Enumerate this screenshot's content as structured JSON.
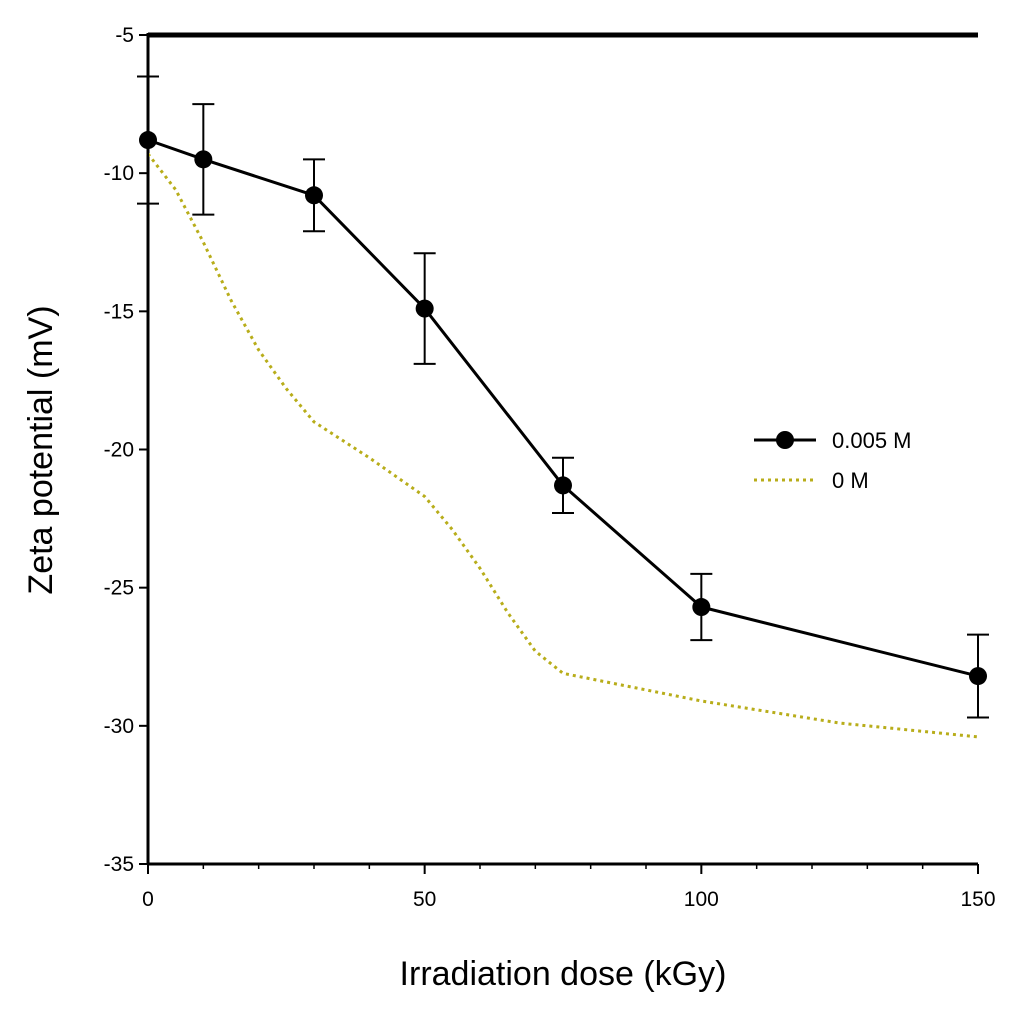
{
  "chart_data": {
    "type": "line",
    "title": "",
    "xlabel": "Irradiation dose (kGy)",
    "ylabel": "Zeta potential (mV)",
    "xlim": [
      0,
      150
    ],
    "ylim": [
      -35,
      -5
    ],
    "x_major_ticks": [
      0,
      50,
      100,
      150
    ],
    "x_minor_step": 10,
    "y_major_ticks": [
      -5,
      -10,
      -15,
      -20,
      -25,
      -30,
      -35
    ],
    "x_tick_labels": [
      "0",
      "50",
      "100",
      "150"
    ],
    "y_tick_labels": [
      "-5",
      "-10",
      "-15",
      "-20",
      "-25",
      "-30",
      "-35"
    ],
    "grid": false,
    "legend_position": "right",
    "series": [
      {
        "name": "0.005 M",
        "color": "#000000",
        "style": "solid",
        "marker": "circle",
        "x": [
          0,
          10,
          30,
          50,
          75,
          100,
          150
        ],
        "y": [
          -8.8,
          -9.5,
          -10.8,
          -14.9,
          -21.3,
          -25.7,
          -28.2
        ],
        "error": [
          2.3,
          2.0,
          1.3,
          2.0,
          1.0,
          1.2,
          1.5
        ]
      },
      {
        "name": "0 M",
        "color": "#b8ad1a",
        "style": "dotted",
        "marker": "none",
        "x": [
          0,
          5,
          10,
          15,
          20,
          25,
          30,
          40,
          50,
          55,
          60,
          65,
          70,
          75,
          100,
          125,
          150
        ],
        "y": [
          -9.3,
          -10.6,
          -12.5,
          -14.6,
          -16.4,
          -17.8,
          -19.0,
          -20.3,
          -21.7,
          -22.9,
          -24.3,
          -25.9,
          -27.3,
          -28.1,
          -29.1,
          -29.9,
          -30.4
        ]
      }
    ]
  }
}
